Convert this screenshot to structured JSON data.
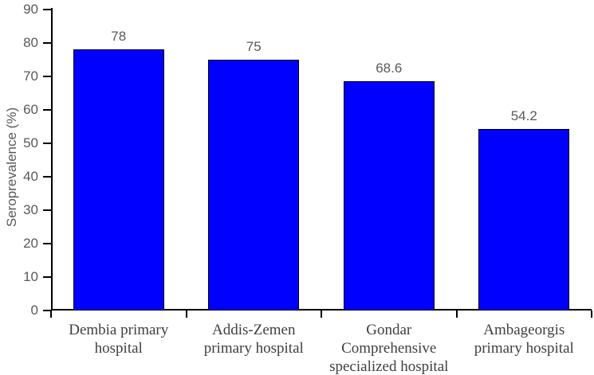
{
  "chart_data": {
    "type": "bar",
    "title": "",
    "xlabel": "",
    "ylabel": "Seroprevalence (%)",
    "ylim": [
      0,
      90
    ],
    "yticks": [
      0,
      10,
      20,
      30,
      40,
      50,
      60,
      70,
      80,
      90
    ],
    "grid": false,
    "legend_position": "none",
    "categories": [
      "Dembia primary hospital",
      "Addis-Zemen primary hospital",
      "Gondar Comprehensive specialized hospital",
      "Ambageorgis primary hospital"
    ],
    "category_lines": [
      [
        "Dembia primary",
        "hospital"
      ],
      [
        "Addis-Zemen",
        "primary hospital"
      ],
      [
        "Gondar",
        "Comprehensive",
        "specialized hospital"
      ],
      [
        "Ambageorgis",
        "primary hospital"
      ]
    ],
    "values": [
      78,
      75,
      68.6,
      54.2
    ],
    "colors": {
      "bar_fill": "#0000fe",
      "bar_border": "#000000",
      "axis_line": "#000000",
      "tick_label": "#595959",
      "category_label": "#3f3f3f"
    }
  }
}
